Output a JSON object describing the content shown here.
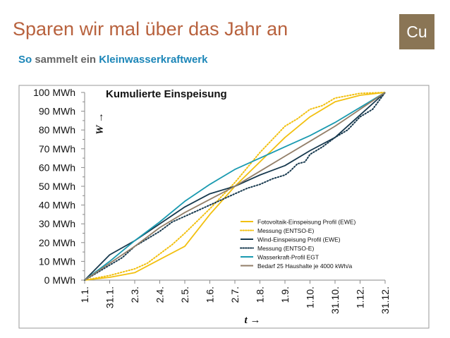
{
  "slide": {
    "title": "Sparen wir mal über das Jahr an",
    "subtitle_prefix": "So",
    "subtitle_rest": "sammelt ein",
    "subtitle_highlight": "Kleinwasserkraftwerk",
    "logo_text": "Cu"
  },
  "colors": {
    "title": "#b8623e",
    "accent_blue": "#1c86b8",
    "logo_bg": "#8a7555"
  },
  "chart_data": {
    "type": "line",
    "title": "Kumulierte Einspeisung",
    "ylabel": "W →",
    "xlabel": "t →",
    "ylim": [
      0,
      100
    ],
    "xlim": [
      0,
      12
    ],
    "y_ticks": [
      "0 MWh",
      "10 MWh",
      "20 MWh",
      "30 MWh",
      "40 MWh",
      "50 MWh",
      "60 MWh",
      "70 MWh",
      "80 MWh",
      "90 MWh",
      "100 MWh"
    ],
    "y_tick_values": [
      0,
      10,
      20,
      30,
      40,
      50,
      60,
      70,
      80,
      90,
      100
    ],
    "x_ticks": [
      "1.1.",
      "31.1.",
      "2.3.",
      "2.4.",
      "2.5.",
      "1.6.",
      "2.7.",
      "1.8.",
      "1.9.",
      "1.10.",
      "31.10.",
      "1.12.",
      "31.12."
    ],
    "x_tick_values": [
      0,
      1,
      2,
      3,
      4,
      5,
      6,
      7,
      8,
      9,
      10,
      11,
      12
    ],
    "legend_position": "bottom-right",
    "series": [
      {
        "name": "Fotovoltaik-Einspeisung Profil (EWE)",
        "color": "#f2c010",
        "style": "solid",
        "x": [
          0,
          1,
          2,
          3,
          4,
          5,
          6,
          7,
          8,
          9,
          10,
          11,
          12
        ],
        "y": [
          0,
          1.5,
          4,
          11,
          18,
          35,
          50,
          63,
          76,
          87,
          95,
          98.5,
          100
        ]
      },
      {
        "name": "Messung (ENTSO-E)",
        "color": "#f2c010",
        "style": "dotted",
        "x": [
          0,
          1,
          2,
          2.5,
          3,
          3.5,
          4,
          5,
          6,
          7,
          7.5,
          8,
          8.5,
          9,
          9.5,
          10,
          11,
          12
        ],
        "y": [
          0,
          2.5,
          6,
          9,
          14,
          19,
          25,
          38,
          52,
          68,
          75,
          82,
          86,
          91,
          93,
          97,
          99.5,
          100
        ]
      },
      {
        "name": "Wind-Einspeisung Profil (EWE)",
        "color": "#17394e",
        "style": "solid",
        "x": [
          0,
          1,
          2,
          3,
          4,
          5,
          6,
          7,
          8,
          9,
          10,
          11,
          12
        ],
        "y": [
          0,
          13.5,
          21,
          30,
          39,
          46,
          50,
          56,
          61,
          69,
          76,
          88,
          100
        ]
      },
      {
        "name": "Messung (ENTSO-E)",
        "color": "#17394e",
        "style": "dotted",
        "x": [
          0,
          0.5,
          1,
          1.5,
          2,
          2.5,
          3,
          3.5,
          4,
          4.5,
          5,
          5.5,
          6,
          6.5,
          7,
          7.5,
          8,
          8.2,
          8.5,
          8.8,
          9,
          9.5,
          10,
          10.5,
          11,
          11.5,
          12
        ],
        "y": [
          0,
          4,
          8,
          12,
          18,
          22,
          26,
          31,
          34,
          37,
          40,
          43,
          46,
          49,
          51,
          54,
          56,
          58,
          62,
          63,
          67,
          71,
          76,
          80,
          87,
          91,
          100
        ]
      },
      {
        "name": "Wasserkraft-Profil EGT",
        "color": "#1a9ab0",
        "style": "solid",
        "x": [
          0,
          1,
          2,
          3,
          4,
          5,
          6,
          7,
          8,
          9,
          10,
          11,
          12
        ],
        "y": [
          0,
          10,
          21,
          31,
          42,
          51,
          59,
          65,
          71,
          77,
          84,
          92,
          100
        ]
      },
      {
        "name": "Bedarf 25 Haushalte je 4000 kWh/a",
        "color": "#927e68",
        "style": "solid",
        "x": [
          0,
          1,
          2,
          3,
          4,
          5,
          6,
          7,
          8,
          9,
          10,
          11,
          12
        ],
        "y": [
          0,
          9,
          18,
          28,
          36,
          43,
          50,
          58,
          66,
          74,
          82,
          91,
          100
        ]
      }
    ]
  }
}
